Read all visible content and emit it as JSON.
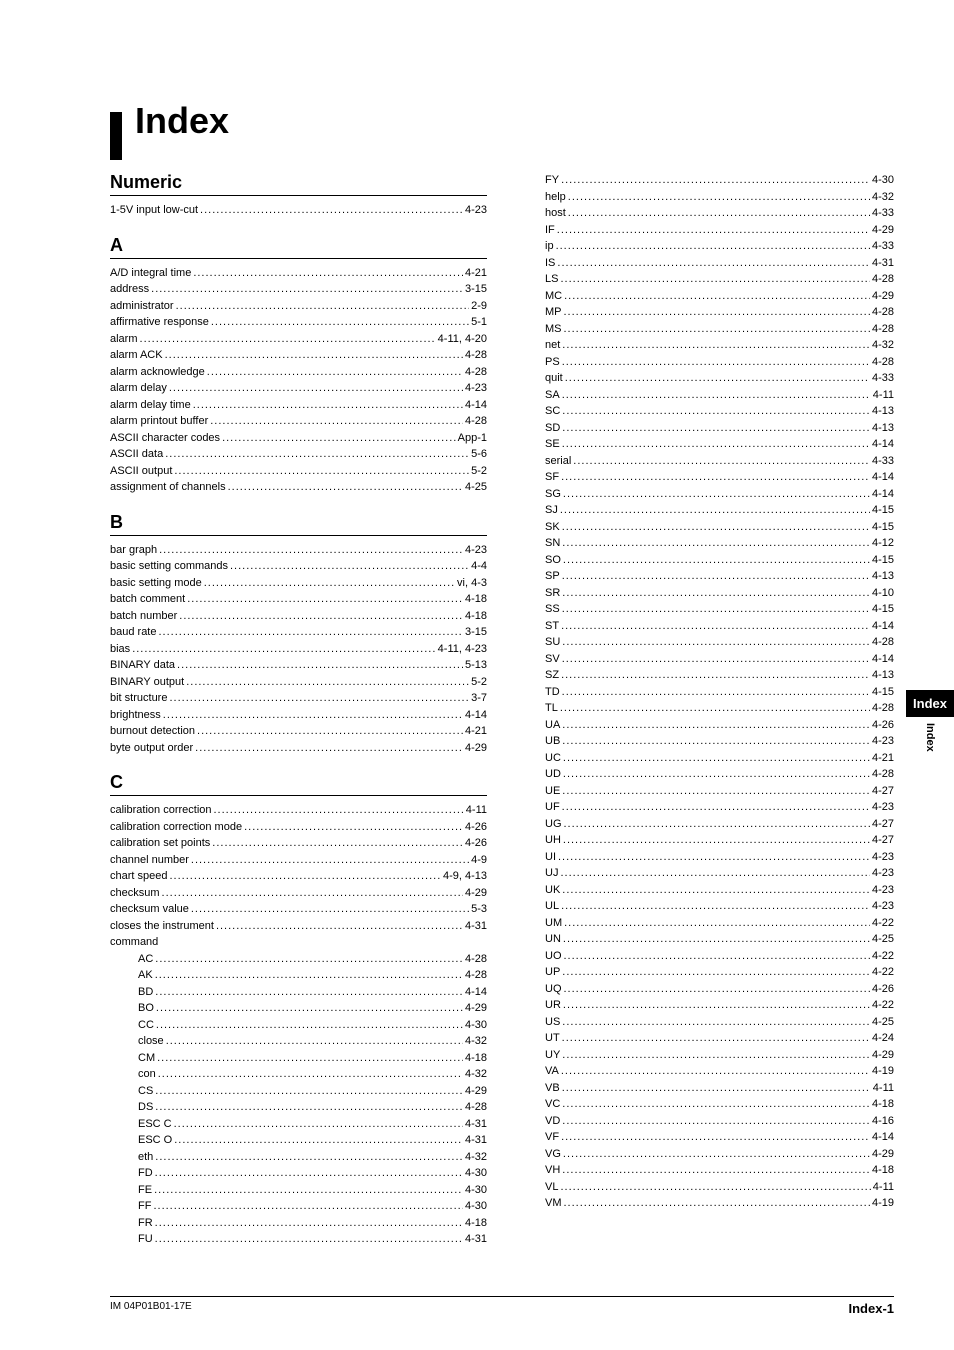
{
  "title": "Index",
  "side_tab": "Index",
  "side_tab_sub": "Index",
  "footer_left": "IM 04P01B01-17E",
  "footer_right": "Index-1",
  "sections_left": [
    {
      "head": "Numeric",
      "entries": [
        {
          "term": "1-5V input low-cut",
          "page": "4-23"
        }
      ]
    },
    {
      "head": "A",
      "entries": [
        {
          "term": "A/D integral time",
          "page": "4-21"
        },
        {
          "term": "address",
          "page": "3-15"
        },
        {
          "term": "administrator",
          "page": "2-9"
        },
        {
          "term": "affirmative response",
          "page": "5-1"
        },
        {
          "term": "alarm",
          "page": "4-11, 4-20"
        },
        {
          "term": "alarm ACK",
          "page": "4-28"
        },
        {
          "term": "alarm acknowledge",
          "page": "4-28"
        },
        {
          "term": "alarm delay",
          "page": "4-23"
        },
        {
          "term": "alarm delay time",
          "page": "4-14"
        },
        {
          "term": "alarm printout buffer",
          "page": "4-28"
        },
        {
          "term": "ASCII character codes",
          "page": "App-1"
        },
        {
          "term": "ASCII data",
          "page": "5-6"
        },
        {
          "term": "ASCII output",
          "page": "5-2"
        },
        {
          "term": "assignment of channels",
          "page": "4-25"
        }
      ]
    },
    {
      "head": "B",
      "entries": [
        {
          "term": "bar graph",
          "page": "4-23"
        },
        {
          "term": "basic setting commands",
          "page": "4-4"
        },
        {
          "term": "basic setting mode",
          "page": "vi, 4-3"
        },
        {
          "term": "batch comment",
          "page": "4-18"
        },
        {
          "term": "batch number",
          "page": "4-18"
        },
        {
          "term": "baud rate",
          "page": "3-15"
        },
        {
          "term": "bias",
          "page": "4-11, 4-23"
        },
        {
          "term": "BINARY data",
          "page": "5-13"
        },
        {
          "term": "BINARY output",
          "page": "5-2"
        },
        {
          "term": "bit structure",
          "page": "3-7"
        },
        {
          "term": "brightness",
          "page": "4-14"
        },
        {
          "term": "burnout detection",
          "page": "4-21"
        },
        {
          "term": "byte output order",
          "page": "4-29"
        }
      ]
    },
    {
      "head": "C",
      "entries": [
        {
          "term": "calibration correction",
          "page": "4-11"
        },
        {
          "term": "calibration correction mode",
          "page": "4-26"
        },
        {
          "term": "calibration set points",
          "page": "4-26"
        },
        {
          "term": "channel number",
          "page": "4-9"
        },
        {
          "term": "chart speed",
          "page": "4-9, 4-13"
        },
        {
          "term": "checksum",
          "page": "4-29"
        },
        {
          "term": "checksum value",
          "page": "5-3"
        },
        {
          "term": "closes the instrument",
          "page": "4-31"
        }
      ],
      "subhead": "command",
      "subentries": [
        {
          "term": "AC",
          "page": "4-28"
        },
        {
          "term": "AK",
          "page": "4-28"
        },
        {
          "term": "BD",
          "page": "4-14"
        },
        {
          "term": "BO",
          "page": "4-29"
        },
        {
          "term": "CC",
          "page": "4-30"
        },
        {
          "term": "close",
          "page": "4-32"
        },
        {
          "term": "CM",
          "page": "4-18"
        },
        {
          "term": "con",
          "page": "4-32"
        },
        {
          "term": "CS",
          "page": "4-29"
        },
        {
          "term": "DS",
          "page": "4-28"
        },
        {
          "term": "ESC C",
          "page": "4-31"
        },
        {
          "term": "ESC O",
          "page": "4-31"
        },
        {
          "term": "eth",
          "page": "4-32"
        },
        {
          "term": "FD",
          "page": "4-30"
        },
        {
          "term": "FE",
          "page": "4-30"
        },
        {
          "term": "FF",
          "page": "4-30"
        },
        {
          "term": "FR",
          "page": "4-18"
        },
        {
          "term": "FU",
          "page": "4-31"
        }
      ]
    }
  ],
  "entries_right": [
    {
      "term": "FY",
      "page": "4-30"
    },
    {
      "term": "help",
      "page": "4-32"
    },
    {
      "term": "host",
      "page": "4-33"
    },
    {
      "term": "IF",
      "page": "4-29"
    },
    {
      "term": "ip",
      "page": "4-33"
    },
    {
      "term": "IS",
      "page": "4-31"
    },
    {
      "term": "LS",
      "page": "4-28"
    },
    {
      "term": "MC",
      "page": "4-29"
    },
    {
      "term": "MP",
      "page": "4-28"
    },
    {
      "term": "MS",
      "page": "4-28"
    },
    {
      "term": "net",
      "page": "4-32"
    },
    {
      "term": "PS",
      "page": "4-28"
    },
    {
      "term": "quit",
      "page": "4-33"
    },
    {
      "term": "SA",
      "page": "4-11"
    },
    {
      "term": "SC",
      "page": "4-13"
    },
    {
      "term": "SD",
      "page": "4-13"
    },
    {
      "term": "SE",
      "page": "4-14"
    },
    {
      "term": "serial",
      "page": "4-33"
    },
    {
      "term": "SF",
      "page": "4-14"
    },
    {
      "term": "SG",
      "page": "4-14"
    },
    {
      "term": "SJ",
      "page": "4-15"
    },
    {
      "term": "SK",
      "page": "4-15"
    },
    {
      "term": "SN",
      "page": "4-12"
    },
    {
      "term": "SO",
      "page": "4-15"
    },
    {
      "term": "SP",
      "page": "4-13"
    },
    {
      "term": "SR",
      "page": "4-10"
    },
    {
      "term": "SS",
      "page": "4-15"
    },
    {
      "term": "ST",
      "page": "4-14"
    },
    {
      "term": "SU",
      "page": "4-28"
    },
    {
      "term": "SV",
      "page": "4-14"
    },
    {
      "term": "SZ",
      "page": "4-13"
    },
    {
      "term": "TD",
      "page": "4-15"
    },
    {
      "term": "TL",
      "page": "4-28"
    },
    {
      "term": "UA",
      "page": "4-26"
    },
    {
      "term": "UB",
      "page": "4-23"
    },
    {
      "term": "UC",
      "page": "4-21"
    },
    {
      "term": "UD",
      "page": "4-28"
    },
    {
      "term": "UE",
      "page": "4-27"
    },
    {
      "term": "UF",
      "page": "4-23"
    },
    {
      "term": "UG",
      "page": "4-27"
    },
    {
      "term": "UH",
      "page": "4-27"
    },
    {
      "term": "UI",
      "page": "4-23"
    },
    {
      "term": "UJ",
      "page": "4-23"
    },
    {
      "term": "UK",
      "page": "4-23"
    },
    {
      "term": "UL",
      "page": "4-23"
    },
    {
      "term": "UM",
      "page": "4-22"
    },
    {
      "term": "UN",
      "page": "4-25"
    },
    {
      "term": "UO",
      "page": "4-22"
    },
    {
      "term": "UP",
      "page": "4-22"
    },
    {
      "term": "UQ",
      "page": "4-26"
    },
    {
      "term": "UR",
      "page": "4-22"
    },
    {
      "term": "US",
      "page": "4-25"
    },
    {
      "term": "UT",
      "page": "4-24"
    },
    {
      "term": "UY",
      "page": "4-29"
    },
    {
      "term": "VA",
      "page": "4-19"
    },
    {
      "term": "VB",
      "page": "4-11"
    },
    {
      "term": "VC",
      "page": "4-18"
    },
    {
      "term": "VD",
      "page": "4-16"
    },
    {
      "term": "VF",
      "page": "4-14"
    },
    {
      "term": "VG",
      "page": "4-29"
    },
    {
      "term": "VH",
      "page": "4-18"
    },
    {
      "term": "VL",
      "page": "4-11"
    },
    {
      "term": "VM",
      "page": "4-19"
    }
  ]
}
